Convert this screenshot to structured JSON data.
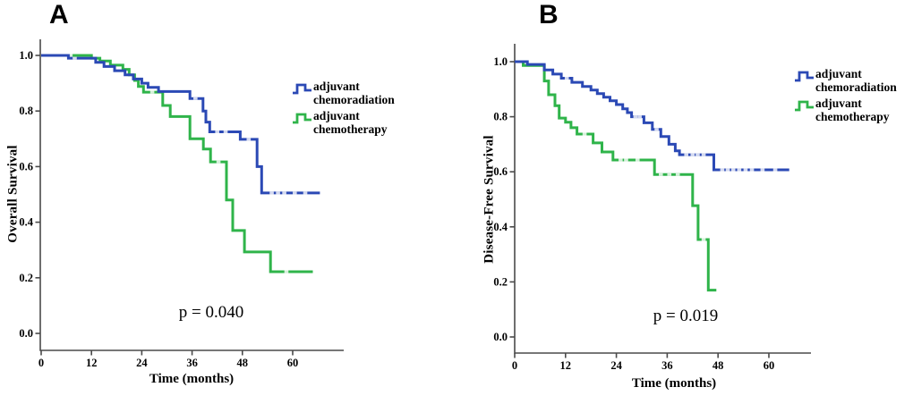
{
  "figure": {
    "background": "#ffffff",
    "axis_color": "#4a4a4a",
    "text_color": "#000000"
  },
  "chart_data": [
    {
      "type": "line",
      "variant": "kaplan-meier-step",
      "panel_label": "A",
      "xlabel": "Time (months)",
      "ylabel": "Overall Survival",
      "xlim": [
        0,
        72
      ],
      "ylim": [
        0.0,
        1.05
      ],
      "x_ticks": [
        0,
        12,
        24,
        36,
        48,
        60
      ],
      "y_ticks": [
        0.0,
        0.2,
        0.4,
        0.6,
        0.8,
        1.0
      ],
      "grid": false,
      "legend_position": "right",
      "annotations": [
        {
          "text": "p = 0.040"
        }
      ],
      "series": [
        {
          "name": "adjuvant chemoradiation",
          "color": "#2b49b5",
          "points": [
            [
              0,
              1.0
            ],
            [
              6.5,
              0.99
            ],
            [
              13,
              0.975
            ],
            [
              15,
              0.96
            ],
            [
              17.5,
              0.945
            ],
            [
              20,
              0.93
            ],
            [
              22,
              0.915
            ],
            [
              24,
              0.9
            ],
            [
              25.5,
              0.885
            ],
            [
              28,
              0.87
            ],
            [
              35.5,
              0.845
            ],
            [
              38.6,
              0.8
            ],
            [
              39.3,
              0.76
            ],
            [
              40.2,
              0.725
            ],
            [
              47.5,
              0.698
            ],
            [
              51.5,
              0.6
            ],
            [
              52.6,
              0.505
            ],
            [
              66.5,
              0.505
            ]
          ],
          "censor_marks": [
            [
              8,
              0.99
            ],
            [
              33,
              0.845
            ],
            [
              36.8,
              0.845
            ],
            [
              42,
              0.725
            ],
            [
              44,
              0.725
            ],
            [
              49.5,
              0.698
            ],
            [
              55,
              0.505
            ],
            [
              56.5,
              0.505
            ],
            [
              58,
              0.505
            ],
            [
              60.5,
              0.505
            ],
            [
              63,
              0.505
            ]
          ]
        },
        {
          "name": "adjuvant chemotherapy",
          "color": "#2fb44a",
          "points": [
            [
              0,
              1.0
            ],
            [
              12,
              0.99
            ],
            [
              14,
              0.98
            ],
            [
              16.5,
              0.965
            ],
            [
              19.5,
              0.95
            ],
            [
              21,
              0.93
            ],
            [
              22.3,
              0.91
            ],
            [
              23.2,
              0.888
            ],
            [
              24.4,
              0.868
            ],
            [
              29,
              0.82
            ],
            [
              30.8,
              0.78
            ],
            [
              35.5,
              0.7
            ],
            [
              38.7,
              0.663
            ],
            [
              40.4,
              0.617
            ],
            [
              44.2,
              0.48
            ],
            [
              45.7,
              0.37
            ],
            [
              48.5,
              0.293
            ],
            [
              54.7,
              0.222
            ],
            [
              64.8,
              0.222
            ]
          ],
          "censor_marks": [
            [
              7,
              1.0
            ],
            [
              26.5,
              0.868
            ],
            [
              42.3,
              0.617
            ],
            [
              58.5,
              0.222
            ]
          ]
        }
      ]
    },
    {
      "type": "line",
      "variant": "kaplan-meier-step",
      "panel_label": "B",
      "xlabel": "Time (months)",
      "ylabel": "Disease-Free Survival",
      "xlim": [
        0,
        70
      ],
      "ylim": [
        0.0,
        1.05
      ],
      "x_ticks": [
        0,
        12,
        24,
        36,
        48,
        60
      ],
      "y_ticks": [
        0.0,
        0.2,
        0.4,
        0.6,
        0.8,
        1.0
      ],
      "grid": false,
      "legend_position": "right",
      "annotations": [
        {
          "text": "p = 0.019"
        }
      ],
      "series": [
        {
          "name": "adjuvant chemoradiation",
          "color": "#2b49b5",
          "points": [
            [
              0,
              1.0
            ],
            [
              3,
              0.99
            ],
            [
              7,
              0.97
            ],
            [
              9,
              0.955
            ],
            [
              11,
              0.94
            ],
            [
              13.5,
              0.925
            ],
            [
              16,
              0.91
            ],
            [
              18,
              0.897
            ],
            [
              19.5,
              0.884
            ],
            [
              21,
              0.871
            ],
            [
              22.5,
              0.858
            ],
            [
              24,
              0.844
            ],
            [
              25.5,
              0.829
            ],
            [
              26.6,
              0.815
            ],
            [
              27.6,
              0.8
            ],
            [
              30.5,
              0.778
            ],
            [
              32.5,
              0.754
            ],
            [
              34.5,
              0.728
            ],
            [
              36.4,
              0.7
            ],
            [
              37.9,
              0.676
            ],
            [
              38.9,
              0.662
            ],
            [
              47,
              0.607
            ],
            [
              64.8,
              0.607
            ]
          ],
          "censor_marks": [
            [
              12.3,
              0.94
            ],
            [
              28.5,
              0.8
            ],
            [
              29.5,
              0.8
            ],
            [
              33.5,
              0.754
            ],
            [
              40.5,
              0.662
            ],
            [
              42,
              0.662
            ],
            [
              43.2,
              0.662
            ],
            [
              44.6,
              0.662
            ],
            [
              49,
              0.607
            ],
            [
              50.3,
              0.607
            ],
            [
              51.6,
              0.607
            ],
            [
              53,
              0.607
            ],
            [
              54.5,
              0.607
            ],
            [
              56,
              0.607
            ],
            [
              58.5,
              0.607
            ],
            [
              61.5,
              0.607
            ]
          ],
          "legend_label": "adjuvant chemoradiation"
        },
        {
          "name": "adjuvant chemotherapy",
          "color": "#2fb44a",
          "points": [
            [
              0,
              1.0
            ],
            [
              2,
              0.986
            ],
            [
              7,
              0.93
            ],
            [
              8,
              0.88
            ],
            [
              9.5,
              0.84
            ],
            [
              10.5,
              0.795
            ],
            [
              12,
              0.78
            ],
            [
              13.3,
              0.76
            ],
            [
              14.7,
              0.737
            ],
            [
              18.5,
              0.705
            ],
            [
              20.6,
              0.672
            ],
            [
              23.2,
              0.643
            ],
            [
              33,
              0.59
            ],
            [
              42,
              0.477
            ],
            [
              43.3,
              0.354
            ],
            [
              45.7,
              0.17
            ],
            [
              47.6,
              0.17
            ]
          ],
          "censor_marks": [
            [
              16.5,
              0.737
            ],
            [
              25,
              0.643
            ],
            [
              26.3,
              0.643
            ],
            [
              29,
              0.643
            ],
            [
              34.5,
              0.59
            ],
            [
              36.5,
              0.59
            ],
            [
              38.5,
              0.59
            ],
            [
              44.6,
              0.354
            ]
          ]
        }
      ]
    }
  ]
}
